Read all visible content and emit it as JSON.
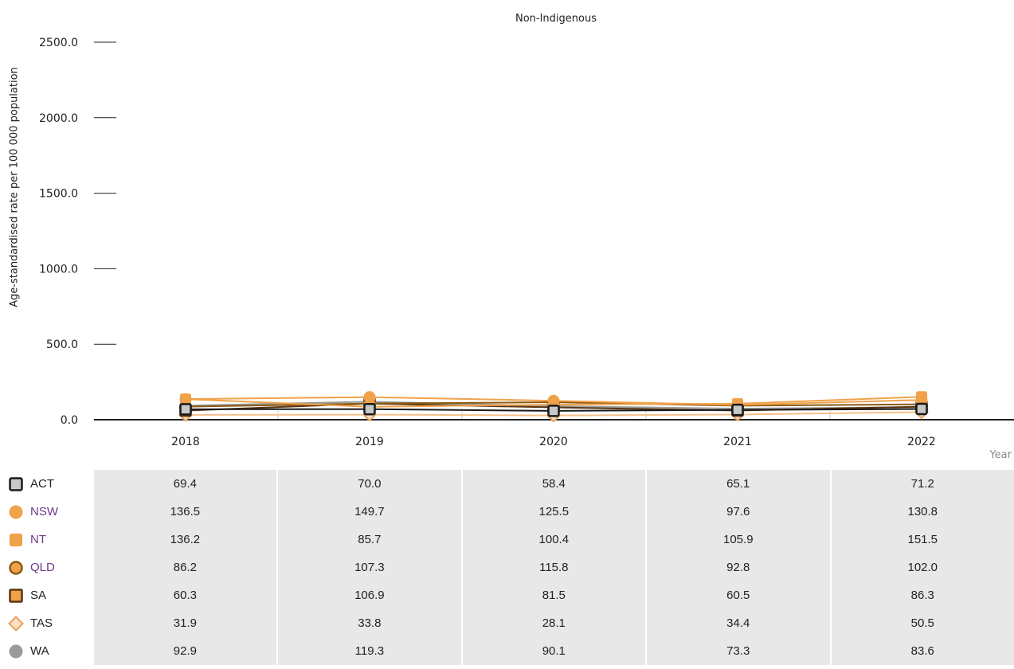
{
  "chart_data": {
    "type": "line",
    "title": "Non-Indigenous",
    "ylabel": "Age-standardised rate per 100 000 population",
    "xlabel": "Year",
    "categories": [
      "2018",
      "2019",
      "2020",
      "2021",
      "2022"
    ],
    "ylim": [
      0,
      2500
    ],
    "yticks": [
      "0.0",
      "500.0",
      "1000.0",
      "1500.0",
      "2000.0",
      "2500.0"
    ],
    "grid": false,
    "legend_placement": "bottom-left table",
    "series": [
      {
        "name": "ACT",
        "values": [
          69.4,
          70.0,
          58.4,
          65.1,
          71.2
        ],
        "display": [
          "69.4",
          "70.0",
          "58.4",
          "65.1",
          "71.2"
        ],
        "line_color": "#1a1a1a",
        "fill": "#c8c8c8",
        "marker": "square",
        "label_color": "#222222"
      },
      {
        "name": "NSW",
        "values": [
          136.5,
          149.7,
          125.5,
          97.6,
          130.8
        ],
        "display": [
          "136.5",
          "149.7",
          "125.5",
          "97.6",
          "130.8"
        ],
        "line_color": "#f0a24a",
        "fill": "#f0a24a",
        "marker": "circle",
        "label_color": "#6b3a8a"
      },
      {
        "name": "NT",
        "values": [
          136.2,
          85.7,
          100.4,
          105.9,
          151.5
        ],
        "display": [
          "136.2",
          "85.7",
          "100.4",
          "105.9",
          "151.5"
        ],
        "line_color": "#f0a24a",
        "fill": "#f0a24a",
        "marker": "square-filled",
        "label_color": "#6b3a8a"
      },
      {
        "name": "QLD",
        "values": [
          86.2,
          107.3,
          115.8,
          92.8,
          102.0
        ],
        "display": [
          "86.2",
          "107.3",
          "115.8",
          "92.8",
          "102.0"
        ],
        "line_color": "#8a5a12",
        "fill": "#f0a24a",
        "marker": "circle-outline",
        "label_color": "#6b3a8a"
      },
      {
        "name": "SA",
        "values": [
          60.3,
          106.9,
          81.5,
          60.5,
          86.3
        ],
        "display": [
          "60.3",
          "106.9",
          "81.5",
          "60.5",
          "86.3"
        ],
        "line_color": "#5a3410",
        "fill": "#f0a24a",
        "marker": "square-outline",
        "label_color": "#222222"
      },
      {
        "name": "TAS",
        "values": [
          31.9,
          33.8,
          28.1,
          34.4,
          50.5
        ],
        "display": [
          "31.9",
          "33.8",
          "28.1",
          "34.4",
          "50.5"
        ],
        "line_color": "#f6c08a",
        "fill": "#f6c08a",
        "marker": "diamond",
        "label_color": "#222222"
      },
      {
        "name": "WA",
        "values": [
          92.9,
          119.3,
          90.1,
          73.3,
          83.6
        ],
        "display": [
          "92.9",
          "119.3",
          "90.1",
          "73.3",
          "83.6"
        ],
        "line_color": "#9a9a9a",
        "fill": "#9a9a9a",
        "marker": "circle",
        "label_color": "#222222"
      }
    ]
  }
}
